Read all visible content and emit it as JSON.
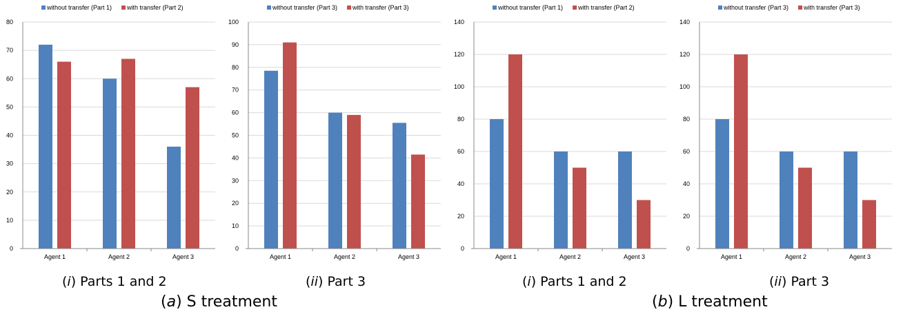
{
  "colors": {
    "series1": "#4F81BD",
    "series2": "#C0504D",
    "grid": "#d9d9d9",
    "axis": "#888888",
    "text": "#000000"
  },
  "groups": [
    {
      "letter": "a",
      "label": "S treatment"
    },
    {
      "letter": "b",
      "label": "L treatment"
    }
  ],
  "chart_data": [
    {
      "type": "bar",
      "caption_roman": "i",
      "caption_text": "Parts 1 and 2",
      "categories": [
        "Agent 1",
        "Agent 2",
        "Agent 3"
      ],
      "series": [
        {
          "name": "without transfer (Part 1)",
          "values": [
            72,
            60,
            36
          ]
        },
        {
          "name": "with transfer (Part 2)",
          "values": [
            66,
            67,
            57
          ]
        }
      ],
      "ylim": [
        0,
        80
      ],
      "yticks": [
        0,
        10,
        20,
        30,
        40,
        50,
        60,
        70,
        80
      ],
      "grid": true,
      "legend": "top"
    },
    {
      "type": "bar",
      "caption_roman": "ii",
      "caption_text": "Part 3",
      "categories": [
        "Agent 1",
        "Agent 2",
        "Agent 3"
      ],
      "series": [
        {
          "name": "without transfer (Part 3)",
          "values": [
            78.5,
            60,
            55.5
          ]
        },
        {
          "name": "with transfer (Part 3)",
          "values": [
            91,
            59,
            41.5
          ]
        }
      ],
      "ylim": [
        0,
        100
      ],
      "yticks": [
        0,
        10,
        20,
        30,
        40,
        50,
        60,
        70,
        80,
        90,
        100
      ],
      "grid": true,
      "legend": "top"
    },
    {
      "type": "bar",
      "caption_roman": "i",
      "caption_text": "Parts 1 and 2",
      "categories": [
        "Agent 1",
        "Agent 2",
        "Agent 3"
      ],
      "series": [
        {
          "name": "without transfer (Part 1)",
          "values": [
            80,
            60,
            60
          ]
        },
        {
          "name": "with transfer (Part 2)",
          "values": [
            120,
            50,
            30
          ]
        }
      ],
      "ylim": [
        0,
        140
      ],
      "yticks": [
        0,
        20,
        40,
        60,
        80,
        100,
        120,
        140
      ],
      "grid": true,
      "legend": "top"
    },
    {
      "type": "bar",
      "caption_roman": "ii",
      "caption_text": "Part 3",
      "categories": [
        "Agent 1",
        "Agent 2",
        "Agent 3"
      ],
      "series": [
        {
          "name": "without transfer (Part 3)",
          "values": [
            80,
            60,
            60
          ]
        },
        {
          "name": "with transfer (Part 3)",
          "values": [
            120,
            50,
            30
          ]
        }
      ],
      "ylim": [
        0,
        140
      ],
      "yticks": [
        0,
        20,
        40,
        60,
        80,
        100,
        120,
        140
      ],
      "grid": true,
      "legend": "top"
    }
  ]
}
